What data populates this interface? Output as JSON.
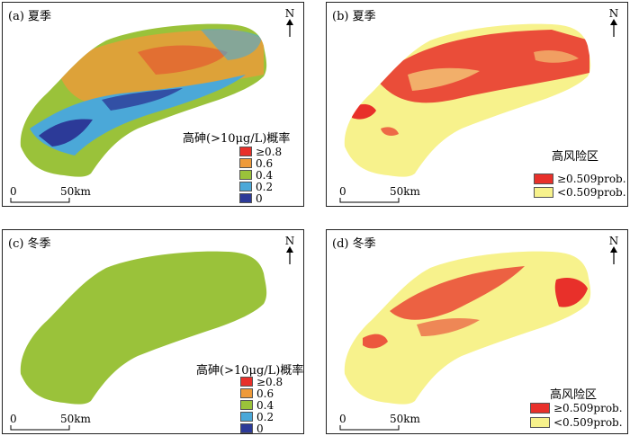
{
  "panels": [
    {
      "title": "(a) 夏季",
      "north_label": "N",
      "scale": {
        "start": "0",
        "end": "50km"
      },
      "legend": {
        "title": "高砷(>10μg/L)概率",
        "items": [
          {
            "label": "≥0.8",
            "color": "#e8302a"
          },
          {
            "label": "0.6",
            "color": "#ee9a3a"
          },
          {
            "label": "0.4",
            "color": "#9ac23a"
          },
          {
            "label": "0.2",
            "color": "#4ba8d8"
          },
          {
            "label": "0",
            "color": "#2c3a98"
          }
        ]
      }
    },
    {
      "title": "(b) 夏季",
      "north_label": "N",
      "scale": {
        "start": "0",
        "end": "50km"
      },
      "legend": {
        "title": "高风险区",
        "items": [
          {
            "label": "≥0.509prob.",
            "color": "#e8302a"
          },
          {
            "label": "<0.509prob.",
            "color": "#f7f28c"
          }
        ]
      }
    },
    {
      "title": "(c) 冬季",
      "north_label": "N",
      "scale": {
        "start": "0",
        "end": "50km"
      },
      "legend": {
        "title": "高砷(>10μg/L)概率",
        "items": [
          {
            "label": "≥0.8",
            "color": "#e8302a"
          },
          {
            "label": "0.6",
            "color": "#ee9a3a"
          },
          {
            "label": "0.4",
            "color": "#9ac23a"
          },
          {
            "label": "0.2",
            "color": "#4ba8d8"
          },
          {
            "label": "0",
            "color": "#2c3a98"
          }
        ]
      }
    },
    {
      "title": "(d) 冬季",
      "north_label": "N",
      "scale": {
        "start": "0",
        "end": "50km"
      },
      "legend": {
        "title": "高风险区",
        "items": [
          {
            "label": "≥0.509prob.",
            "color": "#e8302a"
          },
          {
            "label": "<0.509prob.",
            "color": "#f7f28c"
          }
        ]
      }
    }
  ]
}
